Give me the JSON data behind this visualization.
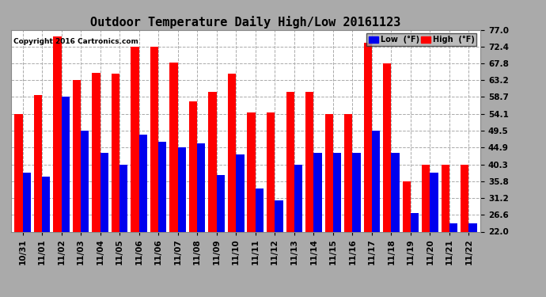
{
  "title": "Outdoor Temperature Daily High/Low 20161123",
  "copyright": "Copyright 2016 Cartronics.com",
  "yticks": [
    22.0,
    26.6,
    31.2,
    35.8,
    40.3,
    44.9,
    49.5,
    54.1,
    58.7,
    63.2,
    67.8,
    72.4,
    77.0
  ],
  "ylim": [
    22.0,
    77.0
  ],
  "x_labels": [
    "10/31",
    "11/01",
    "11/02",
    "11/03",
    "11/04",
    "11/05",
    "11/06",
    "11/06",
    "11/07",
    "11/08",
    "11/09",
    "11/10",
    "11/11",
    "11/12",
    "11/13",
    "11/14",
    "11/15",
    "11/16",
    "11/17",
    "11/18",
    "11/19",
    "11/20",
    "11/21",
    "11/22"
  ],
  "high_values": [
    54.1,
    59.2,
    75.2,
    63.2,
    65.3,
    65.0,
    72.4,
    72.4,
    68.0,
    57.5,
    60.0,
    65.0,
    54.5,
    54.5,
    60.0,
    60.0,
    54.1,
    54.1,
    73.4,
    67.8,
    35.8,
    40.3,
    40.3,
    40.3
  ],
  "low_values": [
    38.0,
    37.0,
    58.7,
    49.5,
    43.5,
    40.3,
    48.5,
    46.5,
    45.0,
    46.0,
    37.5,
    43.0,
    33.8,
    30.5,
    40.3,
    43.5,
    43.5,
    43.5,
    49.5,
    43.5,
    27.0,
    38.0,
    24.2,
    24.2
  ],
  "bar_width": 0.42,
  "high_color": "#FF0000",
  "low_color": "#0000EE",
  "bg_color": "#AAAAAA",
  "plot_bg_color": "#FFFFFF",
  "title_fontsize": 11,
  "tick_fontsize": 7.5,
  "copyright_fontsize": 6.5,
  "legend_low_label": "Low  (°F)",
  "legend_high_label": "High  (°F)"
}
